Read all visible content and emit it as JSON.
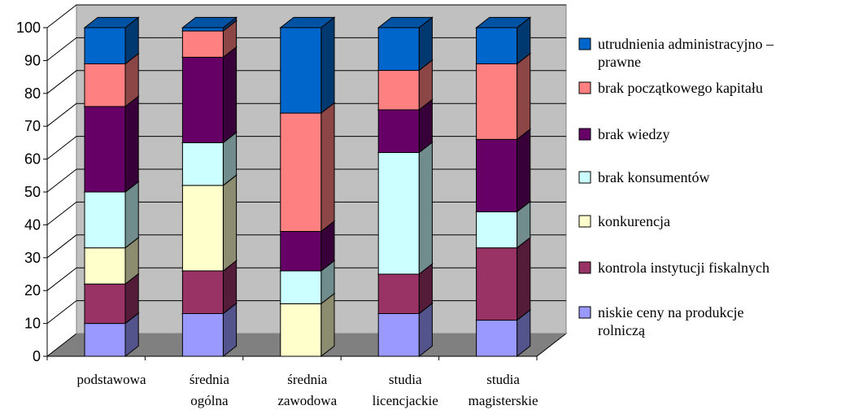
{
  "chart_data": {
    "type": "bar",
    "stacked": true,
    "three_d": true,
    "categories": [
      [
        "podstawowa"
      ],
      [
        "średnia",
        "ogólna"
      ],
      [
        "średnia",
        "zawodowa"
      ],
      [
        "studia",
        "licencjackie"
      ],
      [
        "studia",
        "magisterskie"
      ]
    ],
    "ylim": [
      0,
      100
    ],
    "yticks": [
      0,
      10,
      20,
      30,
      40,
      50,
      60,
      70,
      80,
      90,
      100
    ],
    "grid": true,
    "legend_position": "right",
    "series": [
      {
        "name": "niskie ceny na produkcje rolniczą",
        "legend_lines": [
          "niskie ceny na produkcje",
          "rolniczą"
        ],
        "color": "#9999ff",
        "values": [
          10,
          13,
          0,
          13,
          11
        ]
      },
      {
        "name": "kontrola instytucji fiskalnych",
        "legend_lines": [
          "kontrola instytucji fiskalnych"
        ],
        "color": "#993366",
        "values": [
          12,
          13,
          0,
          12,
          22
        ]
      },
      {
        "name": "konkurencja",
        "legend_lines": [
          "konkurencja"
        ],
        "color": "#ffffcc",
        "values": [
          11,
          26,
          16,
          0,
          0
        ]
      },
      {
        "name": "brak konsumentów",
        "legend_lines": [
          "brak konsumentów"
        ],
        "color": "#ccffff",
        "values": [
          17,
          13,
          10,
          37,
          11
        ]
      },
      {
        "name": "brak wiedzy",
        "legend_lines": [
          "brak wiedzy"
        ],
        "color": "#660066",
        "values": [
          26,
          26,
          12,
          13,
          22
        ]
      },
      {
        "name": "brak początkowego kapitału",
        "legend_lines": [
          "brak początkowego kapitału"
        ],
        "color": "#ff8080",
        "values": [
          13,
          8,
          36,
          12,
          23
        ]
      },
      {
        "name": "utrudnienia administracyjno – prawne",
        "legend_lines": [
          "utrudnienia administracyjno –",
          "prawne"
        ],
        "color": "#0066cc",
        "values": [
          11,
          1,
          26,
          13,
          11
        ]
      }
    ]
  }
}
